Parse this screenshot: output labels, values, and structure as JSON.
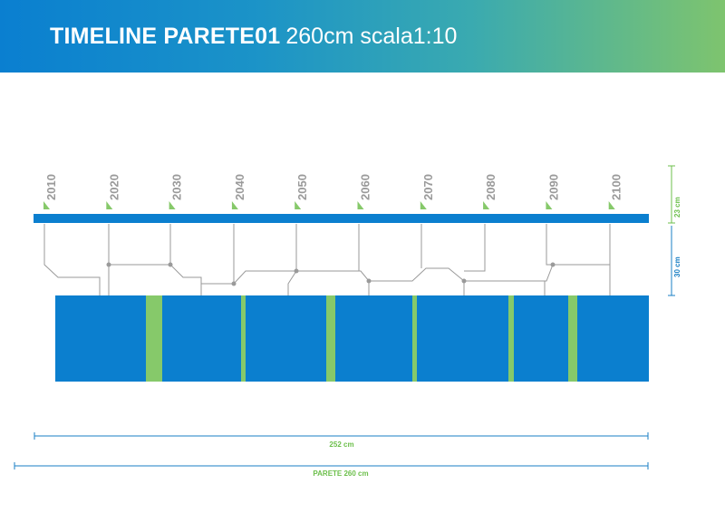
{
  "header": {
    "title_bold": "TIMELINE PARETE01",
    "title_rest": "260cm scala1:10"
  },
  "timeline": {
    "years": [
      "2010",
      "2020",
      "2030",
      "2040",
      "2050",
      "2060",
      "2070",
      "2080",
      "2090",
      "2100"
    ]
  },
  "dimensions": {
    "bar_height": "23 cm",
    "connector_height": "30 cm",
    "inner_width": "252 cm",
    "wall_width": "PARETE 260 cm"
  },
  "colors": {
    "blue": "#0b7fcf",
    "green": "#86c96a",
    "gray_line": "#9a9a9a",
    "dim_green": "#6cbf4b",
    "dim_blue": "#1a7fc4"
  }
}
